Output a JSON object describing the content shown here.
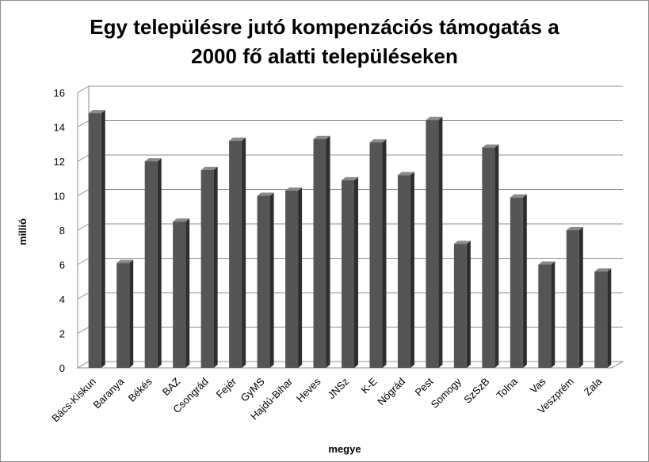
{
  "chart_data": {
    "type": "bar",
    "title_lines": [
      "Egy településre jutó kompenzációs támogatás a",
      "2000 fő alatti településeken"
    ],
    "xlabel": "megye",
    "ylabel": "millió",
    "ylim": [
      0,
      16
    ],
    "yticks": [
      "0",
      "2",
      "4",
      "6",
      "8",
      "10",
      "12",
      "14",
      "16"
    ],
    "categories": [
      "Bács-Kiskun",
      "Baranya",
      "Békés",
      "BAZ",
      "Csongrád",
      "Fejér",
      "GyMS",
      "Hajdú-Bihar",
      "Heves",
      "JNSz",
      "K-E",
      "Nógrád",
      "Pest",
      "Somogy",
      "SzSzB",
      "Tolna",
      "Vas",
      "Veszprém",
      "Zala"
    ],
    "values": [
      14.8,
      6.1,
      12.0,
      8.5,
      11.5,
      13.2,
      10.0,
      10.3,
      13.3,
      10.9,
      13.1,
      11.2,
      14.4,
      7.2,
      12.8,
      9.9,
      6.0,
      8.0,
      5.6
    ],
    "grid": true,
    "legend": "none",
    "colors": {
      "bar_front": "#555555",
      "bar_side": "#2e2e2e",
      "bar_top": "#8a8a8a",
      "gridline": "#8c8c8c",
      "wall": "#ffffff"
    }
  }
}
